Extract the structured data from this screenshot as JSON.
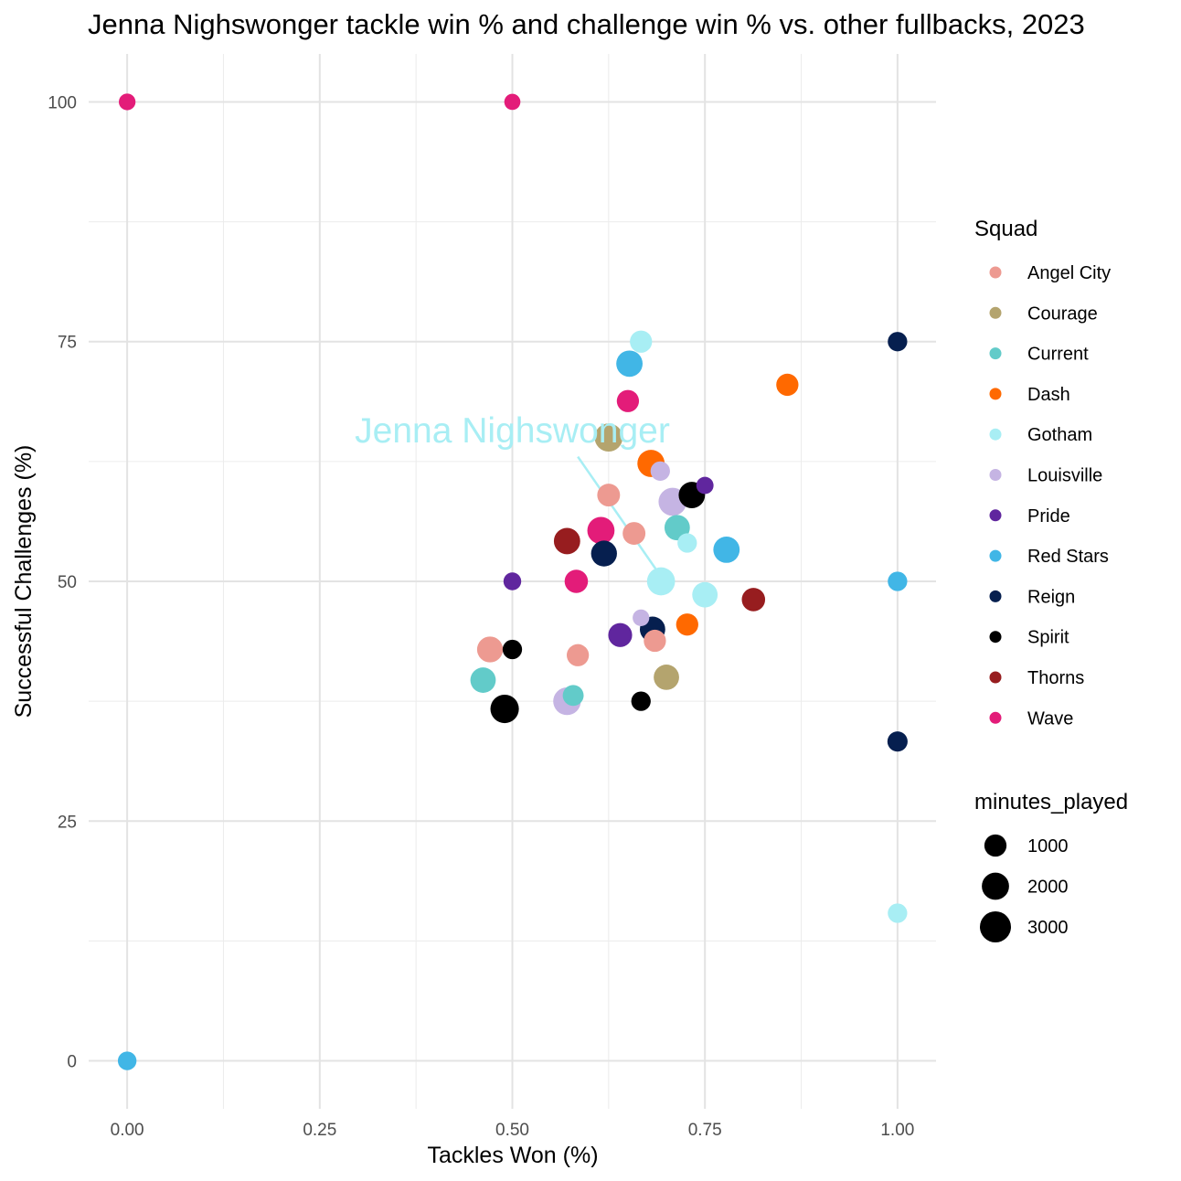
{
  "chart_data": {
    "type": "scatter",
    "title": "Jenna Nighswonger tackle win % and challenge win % vs. other fullbacks, 2023",
    "xlabel": "Tackles Won (%)",
    "ylabel": "Successful Challenges (%)",
    "xlim": [
      -0.05,
      1.05
    ],
    "ylim": [
      -5,
      105
    ],
    "x_ticks": [
      0.0,
      0.25,
      0.5,
      0.75,
      1.0
    ],
    "x_tick_labels": [
      "0.00",
      "0.25",
      "0.50",
      "0.75",
      "1.00"
    ],
    "y_ticks": [
      0,
      25,
      50,
      75,
      100
    ],
    "y_tick_labels": [
      "0",
      "25",
      "50",
      "75",
      "100"
    ],
    "grid": true,
    "legend_position": "right",
    "color_legend": {
      "title": "Squad",
      "entries": [
        {
          "name": "Angel City",
          "color": "#ED9A91"
        },
        {
          "name": "Courage",
          "color": "#B4A46E"
        },
        {
          "name": "Current",
          "color": "#62CBC9"
        },
        {
          "name": "Dash",
          "color": "#FF6900"
        },
        {
          "name": "Gotham",
          "color": "#A8EEF4"
        },
        {
          "name": "Louisville",
          "color": "#C5B4E3"
        },
        {
          "name": "Pride",
          "color": "#60269E"
        },
        {
          "name": "Red Stars",
          "color": "#41B6E6"
        },
        {
          "name": "Reign",
          "color": "#061F4F"
        },
        {
          "name": "Spirit",
          "color": "#000000"
        },
        {
          "name": "Thorns",
          "color": "#971D1F"
        },
        {
          "name": "Wave",
          "color": "#E31C79"
        }
      ]
    },
    "size_legend": {
      "title": "minutes_played",
      "entries": [
        {
          "label": "1000",
          "value": 1000
        },
        {
          "label": "2000",
          "value": 2000
        },
        {
          "label": "3000",
          "value": 3000
        }
      ]
    },
    "annotation": {
      "text": "Jenna Nighswonger",
      "color": "#A8EEF4",
      "text_x": 0.5,
      "text_y": 64.5,
      "line_from": [
        0.585,
        63
      ],
      "line_to": [
        0.693,
        50.5
      ]
    },
    "points": [
      {
        "squad": "Wave",
        "x": 0.0,
        "y": 100,
        "minutes": 300
      },
      {
        "squad": "Wave",
        "x": 0.5,
        "y": 100,
        "minutes": 250
      },
      {
        "squad": "Red Stars",
        "x": 0.0,
        "y": 0,
        "minutes": 500
      },
      {
        "squad": "Reign",
        "x": 1.0,
        "y": 75,
        "minutes": 600
      },
      {
        "squad": "Dash",
        "x": 0.857,
        "y": 70.5,
        "minutes": 1000
      },
      {
        "squad": "Gotham",
        "x": 0.667,
        "y": 75,
        "minutes": 1000
      },
      {
        "squad": "Red Stars",
        "x": 0.652,
        "y": 72.7,
        "minutes": 1800
      },
      {
        "squad": "Wave",
        "x": 0.65,
        "y": 68.8,
        "minutes": 1000
      },
      {
        "squad": "Courage",
        "x": 0.625,
        "y": 65,
        "minutes": 2200
      },
      {
        "squad": "Dash",
        "x": 0.68,
        "y": 62.3,
        "minutes": 2000
      },
      {
        "squad": "Louisville",
        "x": 0.692,
        "y": 61.5,
        "minutes": 600
      },
      {
        "squad": "Pride",
        "x": 0.75,
        "y": 60,
        "minutes": 350
      },
      {
        "squad": "Spirit",
        "x": 0.733,
        "y": 59,
        "minutes": 1800
      },
      {
        "squad": "Angel City",
        "x": 0.625,
        "y": 59,
        "minutes": 1100
      },
      {
        "squad": "Louisville",
        "x": 0.708,
        "y": 58.3,
        "minutes": 2200
      },
      {
        "squad": "Current",
        "x": 0.714,
        "y": 55.6,
        "minutes": 1600
      },
      {
        "squad": "Angel City",
        "x": 0.658,
        "y": 55,
        "minutes": 1100
      },
      {
        "squad": "Wave",
        "x": 0.615,
        "y": 55.3,
        "minutes": 2000
      },
      {
        "squad": "Thorns",
        "x": 0.571,
        "y": 54.2,
        "minutes": 1800
      },
      {
        "squad": "Gotham",
        "x": 0.727,
        "y": 54,
        "minutes": 600
      },
      {
        "squad": "Red Stars",
        "x": 0.778,
        "y": 53.3,
        "minutes": 1800
      },
      {
        "squad": "Reign",
        "x": 0.619,
        "y": 52.9,
        "minutes": 1700
      },
      {
        "squad": "Pride",
        "x": 0.5,
        "y": 50,
        "minutes": 400
      },
      {
        "squad": "Wave",
        "x": 0.583,
        "y": 50,
        "minutes": 1200
      },
      {
        "squad": "Gotham",
        "x": 0.693,
        "y": 50,
        "minutes": 2200
      },
      {
        "squad": "Red Stars",
        "x": 1.0,
        "y": 50,
        "minutes": 600
      },
      {
        "squad": "Gotham",
        "x": 0.75,
        "y": 48.6,
        "minutes": 1600
      },
      {
        "squad": "Thorns",
        "x": 0.813,
        "y": 48.1,
        "minutes": 1200
      },
      {
        "squad": "Louisville",
        "x": 0.667,
        "y": 46.2,
        "minutes": 300
      },
      {
        "squad": "Dash",
        "x": 0.727,
        "y": 45.5,
        "minutes": 1000
      },
      {
        "squad": "Reign",
        "x": 0.682,
        "y": 45,
        "minutes": 1600
      },
      {
        "squad": "Pride",
        "x": 0.64,
        "y": 44.4,
        "minutes": 1300
      },
      {
        "squad": "Angel City",
        "x": 0.685,
        "y": 43.8,
        "minutes": 1000
      },
      {
        "squad": "Angel City",
        "x": 0.471,
        "y": 42.9,
        "minutes": 1700
      },
      {
        "squad": "Spirit",
        "x": 0.5,
        "y": 42.9,
        "minutes": 600
      },
      {
        "squad": "Angel City",
        "x": 0.585,
        "y": 42.3,
        "minutes": 1000
      },
      {
        "squad": "Courage",
        "x": 0.7,
        "y": 40,
        "minutes": 1600
      },
      {
        "squad": "Current",
        "x": 0.462,
        "y": 39.7,
        "minutes": 1600
      },
      {
        "squad": "Current",
        "x": 0.579,
        "y": 38.1,
        "minutes": 800
      },
      {
        "squad": "Louisville",
        "x": 0.571,
        "y": 37.5,
        "minutes": 2100
      },
      {
        "squad": "Spirit",
        "x": 0.667,
        "y": 37.5,
        "minutes": 600
      },
      {
        "squad": "Spirit",
        "x": 0.49,
        "y": 36.7,
        "minutes": 2300
      },
      {
        "squad": "Reign",
        "x": 1.0,
        "y": 33.3,
        "minutes": 700
      },
      {
        "squad": "Gotham",
        "x": 1.0,
        "y": 15.4,
        "minutes": 600
      }
    ]
  }
}
